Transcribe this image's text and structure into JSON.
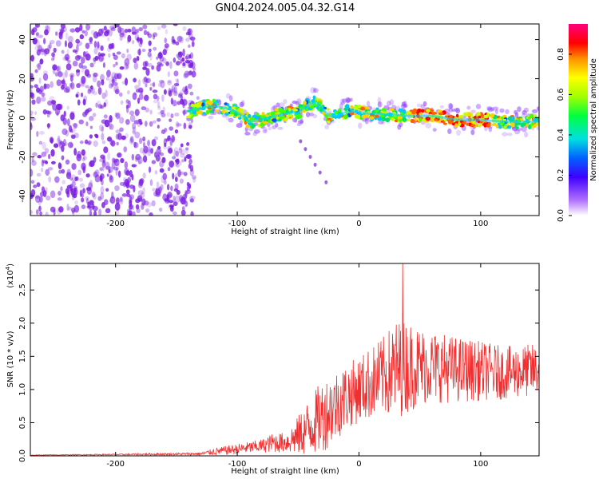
{
  "title": "GN04.2024.005.04.32.G14",
  "colors": {
    "snr_line": "#f03030",
    "scatter": "#7a1ee0"
  },
  "chart_data": [
    {
      "type": "heatmap",
      "xlabel": "Height of straight line (km)",
      "ylabel": "Frequency (Hz)",
      "xlim": [
        -270,
        148
      ],
      "ylim": [
        -50,
        48
      ],
      "x_ticks": [
        "-200",
        "-100",
        "0",
        "100"
      ],
      "y_ticks": [
        "-40",
        "-20",
        "0",
        "20",
        "40"
      ],
      "ridge": {
        "x": [
          -140,
          -130,
          -120,
          -110,
          -100,
          -90,
          -80,
          -70,
          -60,
          -50,
          -40,
          -35,
          -30,
          -25,
          -20,
          -10,
          0,
          10,
          20,
          40,
          60,
          80,
          100,
          120,
          148
        ],
        "y": [
          3,
          5,
          6,
          5,
          3,
          -2,
          -1,
          1,
          2,
          3,
          7,
          8,
          5,
          1,
          1,
          3,
          3,
          2,
          2,
          1,
          1,
          -1,
          -1,
          -2,
          -2
        ]
      },
      "colorbar": {
        "label": "Normalized spectral amplitude",
        "range": [
          0,
          0.95
        ],
        "ticks": [
          "0.0",
          "0.2",
          "0.4",
          "0.6",
          "0.8"
        ]
      }
    },
    {
      "type": "line",
      "xlabel": "Height of straight line (km)",
      "ylabel": "SNR (10 * v/v)",
      "scale_note": "(x10",
      "scale_exp": "4",
      "xlim": [
        -270,
        148
      ],
      "ylim": [
        0,
        2.9
      ],
      "x_ticks": [
        "-200",
        "-100",
        "0",
        "100"
      ],
      "y_ticks": [
        "0.0",
        "0.5",
        "1.0",
        "1.5",
        "2.0",
        "2.5"
      ],
      "envelope": {
        "x": [
          -270,
          -200,
          -130,
          -120,
          -100,
          -80,
          -70,
          -60,
          -50,
          -40,
          -30,
          -20,
          -10,
          0,
          10,
          20,
          30,
          40,
          50,
          60,
          80,
          100,
          120,
          148
        ],
        "mean": [
          0.01,
          0.02,
          0.03,
          0.06,
          0.1,
          0.15,
          0.2,
          0.2,
          0.3,
          0.45,
          0.6,
          0.75,
          0.9,
          1.0,
          1.1,
          1.2,
          1.3,
          1.35,
          1.35,
          1.35,
          1.3,
          1.28,
          1.25,
          1.3
        ],
        "spread": [
          0.005,
          0.01,
          0.02,
          0.05,
          0.08,
          0.1,
          0.15,
          0.15,
          0.3,
          0.45,
          0.55,
          0.55,
          0.5,
          0.5,
          0.55,
          0.6,
          0.75,
          0.7,
          0.6,
          0.55,
          0.5,
          0.45,
          0.4,
          0.4
        ]
      },
      "peak": {
        "x": 36,
        "y": 2.9
      }
    }
  ]
}
